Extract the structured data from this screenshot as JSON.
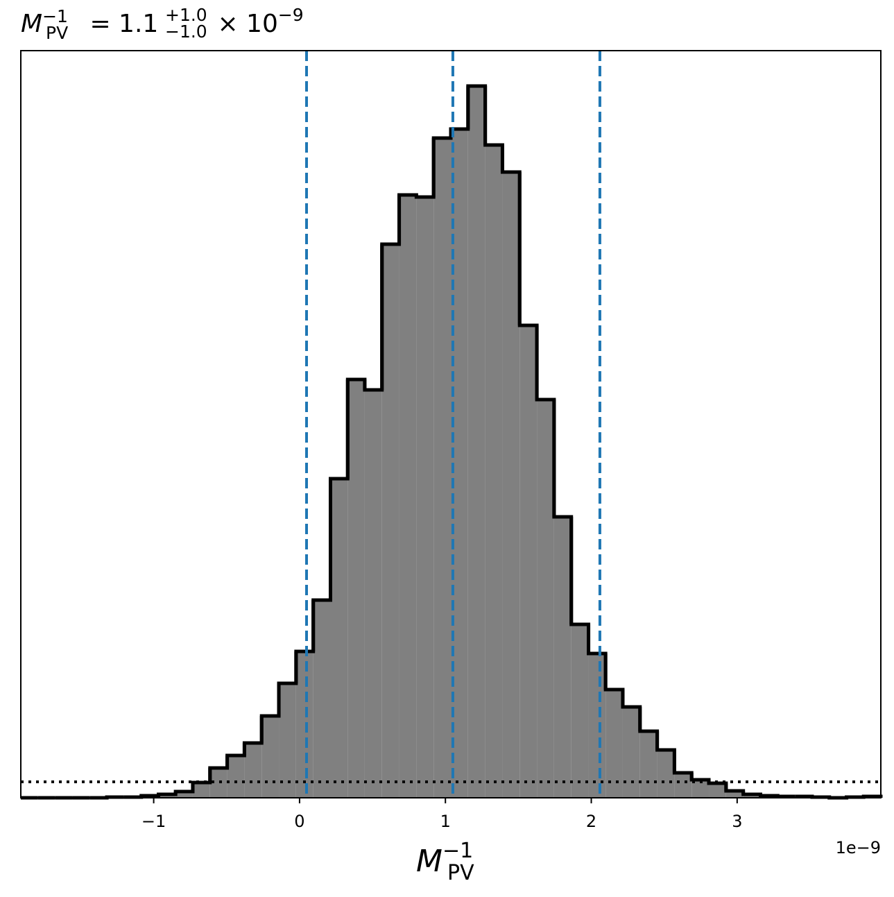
{
  "chart_data": {
    "type": "histogram",
    "title": {
      "symbol": "M",
      "sub": "PV",
      "sup": "−1",
      "body": " = 1.1",
      "plus": "+1.0",
      "minus": "−1.0",
      "times": " × 10",
      "exp": "−9"
    },
    "xlabel": {
      "symbol": "M",
      "sub": "PV",
      "sup": "−1"
    },
    "x_offset_label": "1e−9",
    "bins": [
      -1.911,
      -1.793,
      -1.675,
      -1.557,
      -1.439,
      -1.321,
      -1.203,
      -1.085,
      -0.967,
      -0.85,
      -0.732,
      -0.614,
      -0.496,
      -0.378,
      -0.26,
      -0.142,
      -0.024,
      0.094,
      0.212,
      0.33,
      0.447,
      0.565,
      0.683,
      0.801,
      0.919,
      1.037,
      1.155,
      1.273,
      1.391,
      1.509,
      1.627,
      1.745,
      1.863,
      1.981,
      2.098,
      2.216,
      2.334,
      2.452,
      2.57,
      2.688,
      2.806,
      2.924,
      3.042,
      3.16,
      3.278,
      3.396,
      3.514,
      3.632,
      3.75,
      3.867,
      3.985
    ],
    "values": [
      0,
      0,
      0,
      0,
      0,
      1,
      1,
      3,
      5,
      9,
      22,
      43,
      61,
      79,
      118,
      165,
      211,
      285,
      460,
      603,
      588,
      798,
      869,
      866,
      951,
      964,
      1026,
      941,
      902,
      681,
      574,
      405,
      250,
      208,
      156,
      131,
      96,
      69,
      36,
      26,
      21,
      10,
      5,
      3,
      2,
      2,
      1,
      0,
      1,
      2
    ],
    "color": "#808080",
    "edge_color": "#000000",
    "quantiles": [
      0.048,
      1.051,
      2.059
    ],
    "quantile_color": "#1f77b4",
    "reference_line": 23,
    "xlim": [
      -1.911,
      3.985
    ],
    "ylim": [
      0,
      1077
    ],
    "xticks": [
      {
        "value": -1,
        "label": "−1"
      },
      0,
      1,
      2,
      3
    ]
  }
}
